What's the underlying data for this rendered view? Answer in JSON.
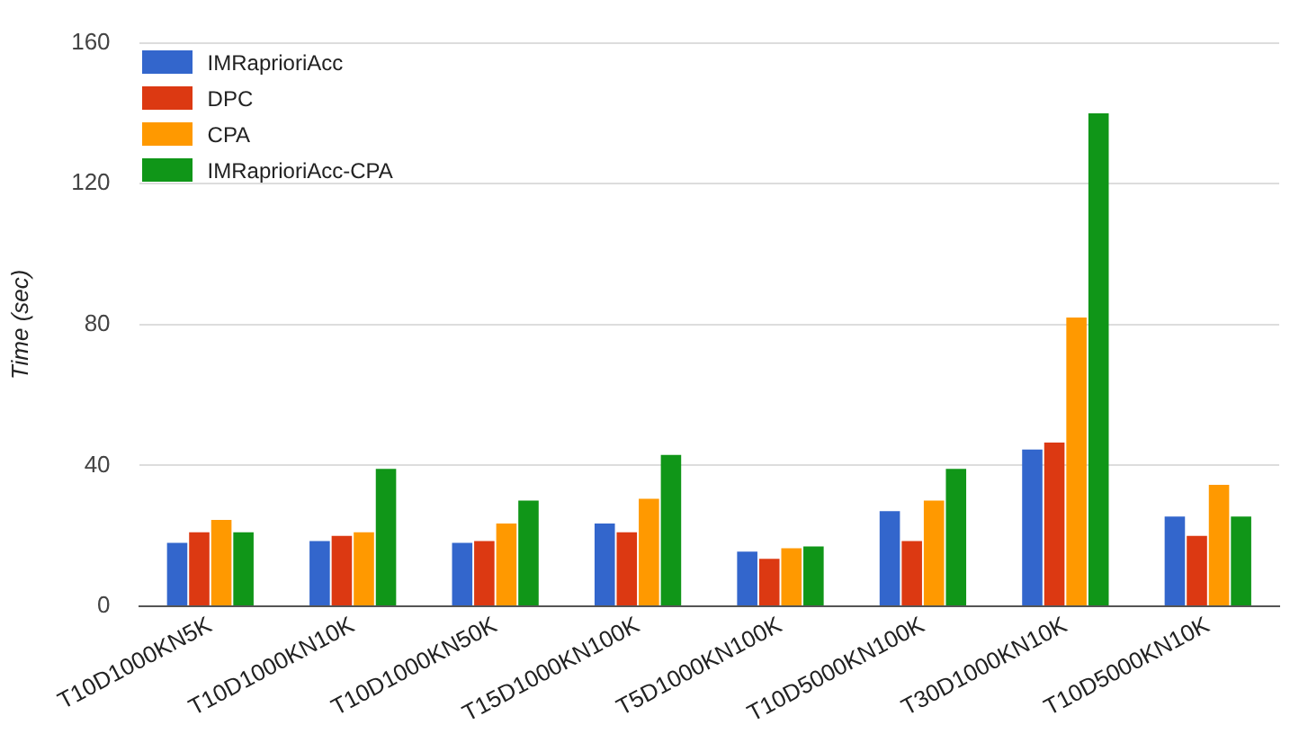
{
  "chart_data": {
    "type": "bar",
    "ylabel": "Time (sec)",
    "categories": [
      "T10D1000KN5K",
      "T10D1000KN10K",
      "T10D1000KN50K",
      "T15D1000KN100K",
      "T5D1000KN100K",
      "T10D5000KN100K",
      "T30D1000KN10K",
      "T10D5000KN10K"
    ],
    "series": [
      {
        "name": "IMRaprioriAcc",
        "color": "#3366cc",
        "values": [
          18,
          18.5,
          18,
          23.5,
          15.5,
          27,
          44.5,
          25.5
        ]
      },
      {
        "name": "DPC",
        "color": "#dc3912",
        "values": [
          21,
          20,
          18.5,
          21,
          13.5,
          18.5,
          46.5,
          20
        ]
      },
      {
        "name": "CPA",
        "color": "#ff9900",
        "values": [
          24.5,
          21,
          23.5,
          30.5,
          16.5,
          30,
          82,
          34.5
        ]
      },
      {
        "name": "IMRaprioriAcc-CPA",
        "color": "#109618",
        "values": [
          21,
          39,
          30,
          43,
          17,
          39,
          140,
          25.5
        ]
      }
    ],
    "ylim": [
      0,
      160
    ],
    "yticks": [
      0,
      40,
      80,
      120,
      160
    ],
    "grid": "y",
    "legend": "top left"
  }
}
